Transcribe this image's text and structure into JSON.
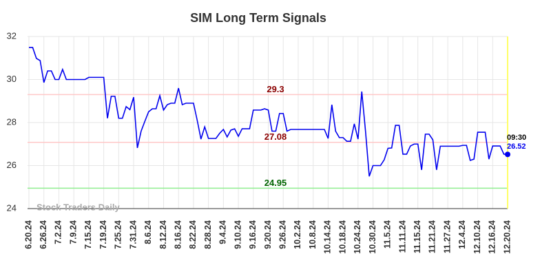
{
  "chart_data": {
    "type": "line",
    "title": "SIM Long Term Signals",
    "watermark": "Stock Traders Daily",
    "categories": [
      "6.20.24",
      null,
      null,
      null,
      "6.26.24",
      null,
      null,
      null,
      "7.2.24",
      null,
      null,
      null,
      "7.9.24",
      null,
      null,
      null,
      "7.15.24",
      null,
      null,
      null,
      "7.19.24",
      null,
      null,
      null,
      "7.25.24",
      null,
      null,
      null,
      "7.31.24",
      null,
      null,
      null,
      "8.6.24",
      null,
      null,
      null,
      "8.12.24",
      null,
      null,
      null,
      "8.16.24",
      null,
      null,
      null,
      "8.22.24",
      null,
      null,
      null,
      "8.28.24",
      null,
      null,
      null,
      "9.4.24",
      null,
      null,
      null,
      "9.10.24",
      null,
      null,
      null,
      "9.16.24",
      null,
      null,
      null,
      "9.20.24",
      null,
      null,
      null,
      "9.26.24",
      null,
      null,
      null,
      "10.2.24",
      null,
      null,
      null,
      "10.8.24",
      null,
      null,
      null,
      "10.14.24",
      null,
      null,
      null,
      "10.18.24",
      null,
      null,
      null,
      "10.24.24",
      null,
      null,
      null,
      "10.30.24",
      null,
      null,
      null,
      "11.5.24",
      null,
      null,
      null,
      "11.11.24",
      null,
      null,
      null,
      "11.15.24",
      null,
      null,
      null,
      "11.21.24",
      null,
      null,
      null,
      "11.27.24",
      null,
      null,
      null,
      "12.4.24",
      null,
      null,
      null,
      "12.10.24",
      null,
      null,
      null,
      "12.16.24",
      null,
      null,
      null,
      "12.20.24"
    ],
    "series": [
      {
        "color": "#0000ee",
        "values": [
          31.49,
          31.49,
          30.98,
          30.88,
          29.86,
          30.4,
          30.4,
          30.0,
          30.0,
          30.47,
          30.0,
          30.0,
          30.0,
          30.0,
          30.0,
          30.0,
          30.1,
          30.1,
          30.1,
          30.1,
          30.1,
          28.2,
          29.22,
          29.22,
          28.2,
          28.2,
          28.74,
          28.6,
          29.18,
          26.82,
          27.6,
          28.06,
          28.5,
          28.64,
          28.64,
          29.25,
          28.58,
          28.83,
          28.9,
          28.9,
          29.6,
          28.83,
          28.9,
          28.9,
          28.9,
          28.1,
          27.23,
          27.8,
          27.26,
          27.26,
          27.26,
          27.5,
          27.68,
          27.33,
          27.65,
          27.71,
          27.36,
          27.71,
          27.71,
          27.71,
          28.58,
          28.58,
          28.58,
          28.64,
          28.58,
          27.6,
          27.6,
          28.42,
          28.42,
          27.6,
          27.68,
          27.68,
          27.68,
          27.68,
          27.68,
          27.68,
          27.68,
          27.68,
          27.68,
          27.68,
          27.26,
          28.83,
          27.6,
          27.3,
          27.3,
          27.13,
          27.13,
          27.94,
          27.23,
          29.44,
          27.6,
          25.5,
          26.0,
          26.0,
          26.0,
          26.27,
          26.8,
          26.82,
          27.87,
          27.87,
          26.53,
          26.53,
          26.91,
          27.0,
          27.0,
          25.8,
          27.46,
          27.46,
          27.2,
          25.8,
          26.9,
          26.9,
          26.9,
          26.9,
          26.9,
          26.9,
          26.94,
          26.94,
          26.24,
          26.3,
          27.55,
          27.55,
          27.55,
          26.3,
          26.91,
          26.91,
          26.91,
          26.53,
          26.52
        ]
      }
    ],
    "last_time": "09:30",
    "hlines": [
      {
        "value": 29.3,
        "color": "#ffc8c8",
        "label_color": "#8b0000"
      },
      {
        "value": 27.08,
        "color": "#ffc8c8",
        "label_color": "#8b0000"
      },
      {
        "value": 24.95,
        "color": "#90ee90",
        "label_color": "#006400"
      }
    ],
    "ylim": [
      24,
      32
    ],
    "yticks": [
      24,
      26,
      28,
      30,
      32
    ],
    "grid": true
  }
}
